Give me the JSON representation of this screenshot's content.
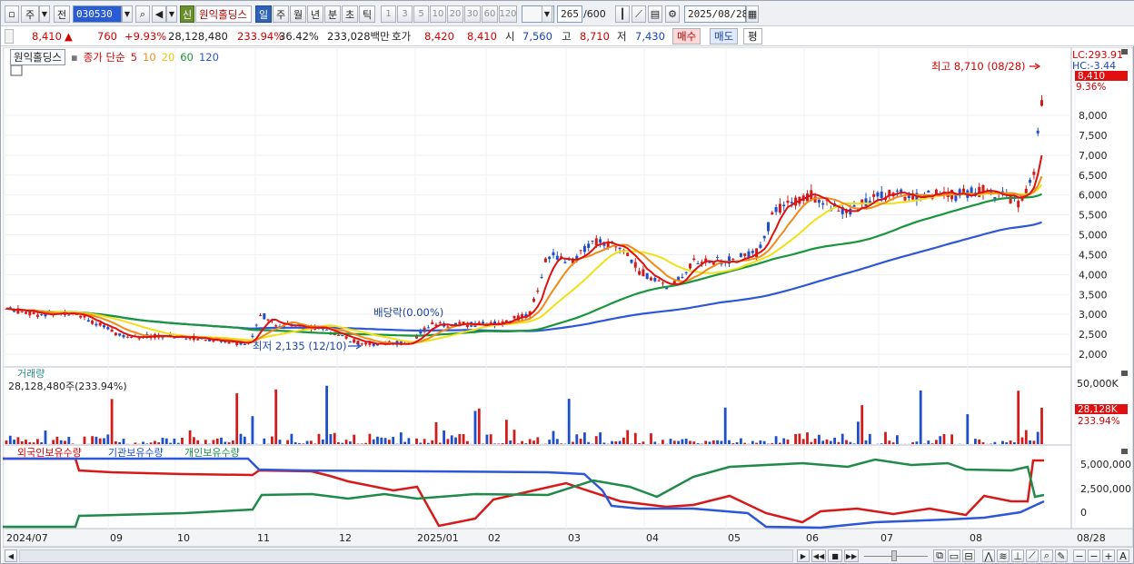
{
  "toolbar": {
    "period_label": "주",
    "mode_label": "전",
    "code_value": "030530",
    "sin_label": "신",
    "stock_name": "원익홀딩스",
    "timeframes": [
      "일",
      "주",
      "월",
      "년",
      "분",
      "초",
      "틱"
    ],
    "intervals": [
      "1",
      "3",
      "5",
      "10",
      "20",
      "30",
      "60",
      "120"
    ],
    "count_value": "265",
    "count_total": "/600",
    "date_value": "2025/08/28"
  },
  "quote": {
    "price": "8,410",
    "arrow": "▲",
    "change": "760",
    "change_pct": "+9.93%",
    "volume": "28,128,480",
    "volume_ratio": "233.94%",
    "turnover": "36.42%",
    "amount": "233,028백만",
    "ask_label": "호가",
    "ask": "8,420",
    "bid": "8,410",
    "open_label": "시",
    "open": "7,560",
    "high_label": "고",
    "high": "8,710",
    "low_label": "저",
    "low": "7,430",
    "buy_label": "매수",
    "sell_label": "매도",
    "avg_label": "평"
  },
  "price_panel": {
    "name_tag": "원익홀딩스",
    "ma_title": "종가 단순",
    "ma_periods": [
      "5",
      "10",
      "20",
      "60",
      "120"
    ],
    "lc_label": "LC:293.91",
    "hc_label": "HC:-3.44",
    "last_price_tag": "8,410",
    "last_pct_tag": "9.36%",
    "high_note": "최고 8,710 (08/28)",
    "low_note": "최저 2,135 (12/10)",
    "dividend_note": "배당락(0.00%)",
    "yaxis_ticks": [
      "8,000",
      "7,500",
      "7,000",
      "6,500",
      "6,000",
      "5,500",
      "5,000",
      "4,500",
      "4,000",
      "3,500",
      "3,000",
      "2,500",
      "2,000"
    ]
  },
  "volume_panel": {
    "title": "거래량",
    "info": "28,128,480주(233.94%)",
    "yaxis_tick": "50,000K",
    "last_tag": "28,128K",
    "last_pct": "233.94%"
  },
  "holding_panel": {
    "series_labels": [
      "외국인보유수량",
      "기관보유수량",
      "개인보유수량"
    ],
    "yaxis_ticks": [
      "5,000,000",
      "2,500,000",
      "0"
    ]
  },
  "xaxis": {
    "labels": [
      "2024/07",
      "09",
      "10",
      "11",
      "12",
      "2025/01",
      "02",
      "03",
      "04",
      "05",
      "06",
      "07",
      "08",
      "08/28"
    ]
  },
  "colors": {
    "ma5": "#e01010",
    "ma10": "#f08a18",
    "ma20": "#f2e016",
    "ma60": "#19963c",
    "ma120": "#2e57d8",
    "up": "#d21c1c",
    "down": "#1f4fc8"
  }
}
